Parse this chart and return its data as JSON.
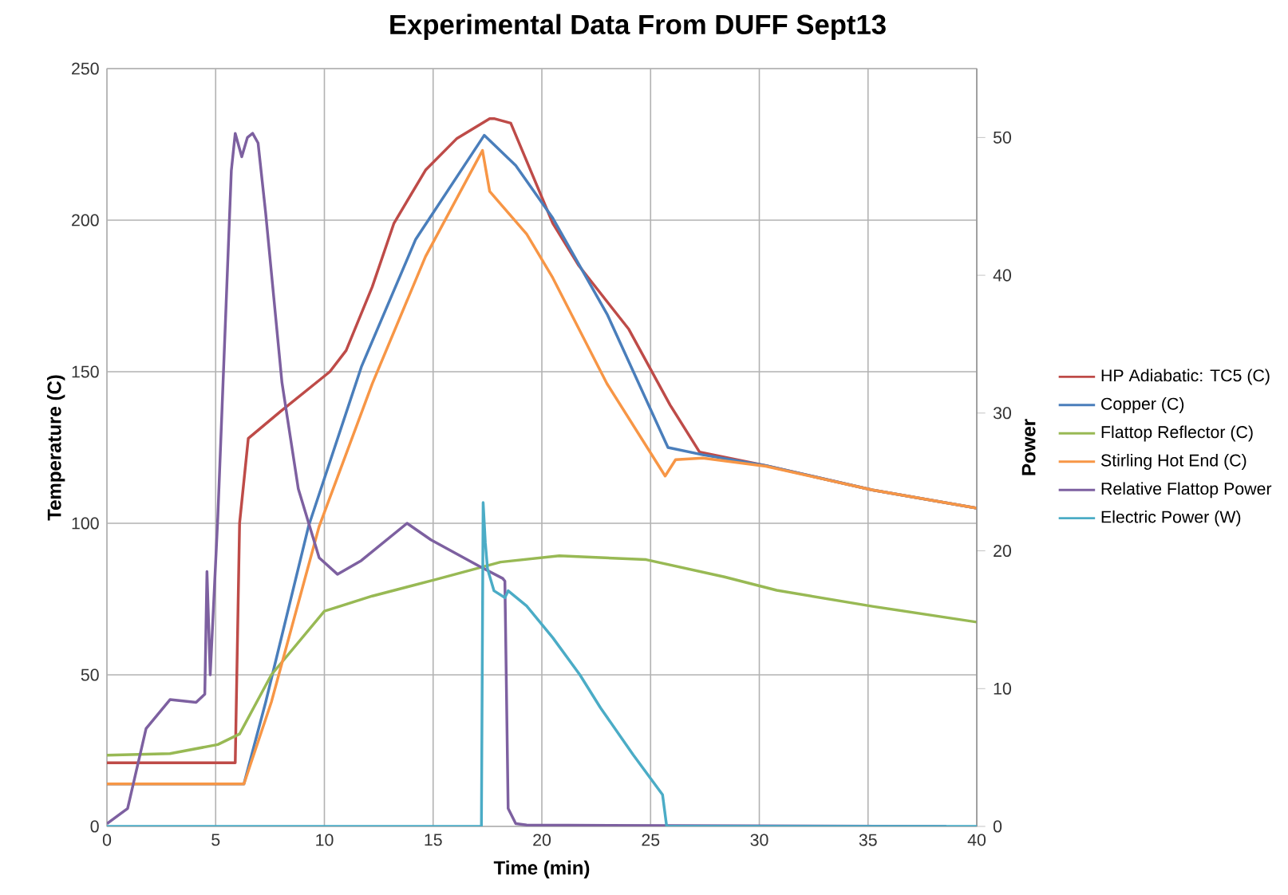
{
  "chart_data": {
    "type": "line",
    "title": "Experimental Data From DUFF Sept13",
    "xlabel": "Time (min)",
    "ylabel": "Temperature (C)",
    "y2label": "Power",
    "xlim": [
      0,
      40
    ],
    "xticks": [
      0,
      5,
      10,
      15,
      20,
      25,
      30,
      35,
      40
    ],
    "ylim": [
      0,
      250
    ],
    "yticks": [
      0,
      50,
      100,
      150,
      200,
      250
    ],
    "y2lim": [
      0,
      55
    ],
    "y2ticks": [
      0,
      10,
      20,
      30,
      40,
      50
    ],
    "grid": true,
    "legend": "right",
    "series": [
      {
        "name": "HP Adiabatic:  TC5 (C)",
        "color": "#be4b48",
        "axis": "y",
        "x": [
          0,
          5.9,
          6.1,
          6.5,
          8,
          10.25,
          11,
          12.2,
          13.2,
          14.65,
          16.1,
          17.6,
          17.8,
          18.57,
          20.5,
          21.7,
          24,
          25.9,
          27.25,
          30.3,
          35.2,
          40
        ],
        "values": [
          21,
          21,
          100,
          128,
          137,
          150,
          157,
          178,
          199,
          216.5,
          227,
          233.5,
          233.5,
          232,
          199,
          185,
          164,
          139,
          123.5,
          119,
          111,
          105
        ]
      },
      {
        "name": "Copper (C)",
        "color": "#4a7ebb",
        "axis": "y",
        "x": [
          0,
          6.3,
          7.3,
          9.27,
          11.7,
          14.2,
          17.35,
          18.8,
          20.5,
          23,
          25.8,
          27.4,
          30.3,
          35.2,
          40
        ],
        "values": [
          14,
          14,
          41,
          99,
          151.6,
          193.7,
          228,
          218,
          200.7,
          169,
          125,
          122.6,
          119,
          111,
          105
        ]
      },
      {
        "name": "Flattop Reflector (C)",
        "color": "#98b954",
        "axis": "y",
        "x": [
          0,
          2.9,
          5.1,
          6.1,
          7.56,
          10,
          12.2,
          15.1,
          18.1,
          20.8,
          24.8,
          28.4,
          30.8,
          35.2,
          40
        ],
        "values": [
          23.5,
          24,
          27,
          30.5,
          50,
          71,
          76,
          81.4,
          87.2,
          89.3,
          88,
          82.3,
          77.9,
          72.6,
          67.4
        ]
      },
      {
        "name": "Stirling Hot End (C)",
        "color": "#f79646",
        "axis": "y",
        "x": [
          0,
          6.3,
          7.56,
          9.76,
          12.2,
          14.65,
          17.27,
          17.6,
          19.3,
          20.5,
          23,
          25.67,
          26.15,
          27.4,
          30.3,
          35.2,
          40
        ],
        "values": [
          14,
          14,
          41,
          99,
          146,
          188,
          223,
          209.5,
          195.4,
          181,
          146,
          115.6,
          121,
          121.5,
          118.8,
          111,
          105
        ]
      },
      {
        "name": "Relative Flattop Power",
        "color": "#7d60a0",
        "axis": "y2",
        "x": [
          0,
          0.95,
          1.8,
          2.9,
          4.1,
          4.5,
          4.6,
          4.75,
          5.1,
          5.72,
          5.9,
          6.2,
          6.46,
          6.7,
          6.95,
          7.3,
          8.05,
          8.8,
          9.76,
          10.6,
          11.7,
          13.8,
          14.9,
          17.1,
          18.2,
          18.3,
          18.45,
          18.8,
          19.3,
          38.6
        ],
        "values": [
          0.2,
          1.3,
          7.1,
          9.2,
          9,
          9.6,
          18.5,
          11,
          22.5,
          47.6,
          50.3,
          48.6,
          50,
          50.3,
          49.6,
          44.5,
          32.2,
          24.5,
          19.5,
          18.3,
          19.3,
          22,
          20.8,
          18.9,
          18,
          17.8,
          1.3,
          0.2,
          0.1,
          0
        ]
      },
      {
        "name": "Electric Power (W)",
        "color": "#4bacc6",
        "axis": "y2",
        "x": [
          0,
          17.22,
          17.3,
          17.4,
          17.5,
          17.8,
          18.3,
          18.45,
          19.3,
          20.5,
          21.75,
          22.7,
          24.2,
          25.55,
          25.74,
          40
        ],
        "values": [
          0,
          0,
          23.5,
          20.6,
          18.7,
          17.1,
          16.6,
          17.1,
          16,
          13.7,
          11,
          8.6,
          5.2,
          2.3,
          0,
          0
        ]
      }
    ]
  }
}
